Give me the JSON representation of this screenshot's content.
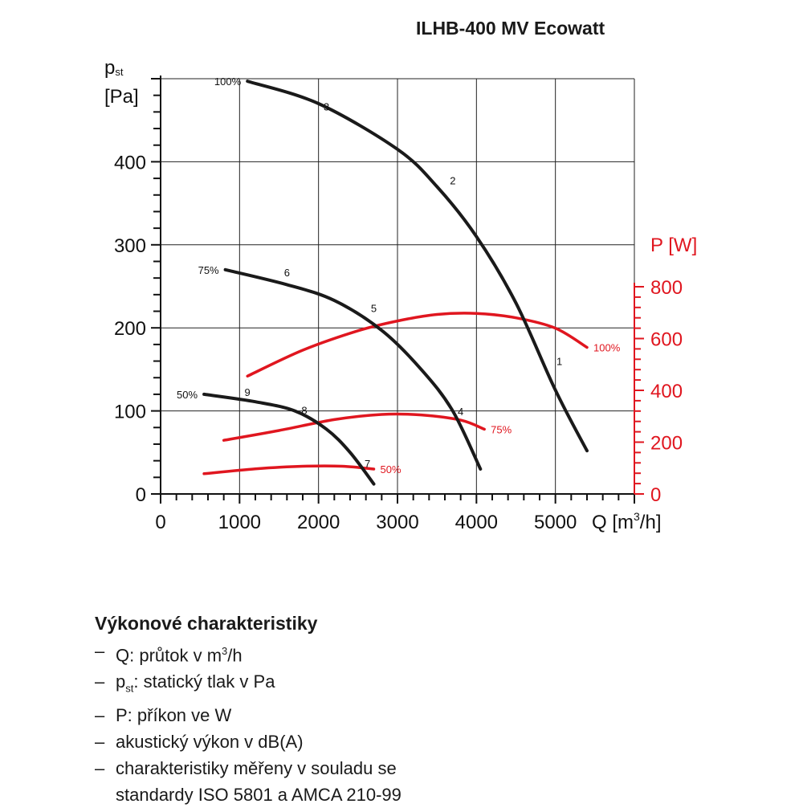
{
  "title": "ILHB-400 MV Ecowatt",
  "chart_data": {
    "type": "line",
    "left_axis": {
      "label_main": "p",
      "label_sub": "st",
      "unit": "[Pa]",
      "range": [
        0,
        500
      ],
      "ticks": [
        0,
        100,
        200,
        300,
        400
      ]
    },
    "right_axis": {
      "label": "P [W]",
      "range": [
        0,
        800
      ],
      "ticks": [
        0,
        200,
        400,
        600,
        800
      ],
      "color": "#e0161f"
    },
    "x_axis": {
      "label_prefix": "Q [m",
      "label_sup": "3",
      "label_suffix": "/h]",
      "range": [
        0,
        6000
      ],
      "ticks": [
        0,
        1000,
        2000,
        3000,
        4000,
        5000
      ]
    },
    "grid": true,
    "pressure_series": [
      {
        "name": "100%",
        "color": "#1a1a1a",
        "x": [
          1100,
          2000,
          3000,
          3500,
          4000,
          4500,
          5000,
          5400
        ],
        "y": [
          497,
          470,
          415,
          370,
          310,
          230,
          125,
          52
        ]
      },
      {
        "name": "75%",
        "color": "#1a1a1a",
        "x": [
          820,
          1600,
          2200,
          2800,
          3300,
          3700,
          4050
        ],
        "y": [
          270,
          252,
          233,
          197,
          150,
          100,
          30
        ]
      },
      {
        "name": "50%",
        "color": "#1a1a1a",
        "x": [
          550,
          1200,
          1700,
          2100,
          2400,
          2700
        ],
        "y": [
          120,
          111,
          100,
          78,
          50,
          12
        ]
      }
    ],
    "power_series": [
      {
        "name": "100%",
        "color": "#e0161f",
        "x": [
          1100,
          1800,
          2500,
          3000,
          3500,
          4000,
          4500,
          5000,
          5400
        ],
        "y": [
          455,
          555,
          630,
          668,
          693,
          697,
          680,
          640,
          566
        ]
      },
      {
        "name": "75%",
        "color": "#e0161f",
        "x": [
          800,
          1500,
          2200,
          2800,
          3300,
          3800,
          4100
        ],
        "y": [
          207,
          245,
          287,
          307,
          305,
          285,
          250
        ]
      },
      {
        "name": "50%",
        "color": "#e0161f",
        "x": [
          550,
          1200,
          1800,
          2300,
          2700
        ],
        "y": [
          78,
          97,
          107,
          107,
          96
        ]
      }
    ],
    "point_markers": [
      {
        "label": "1",
        "x": 5050,
        "y": 155
      },
      {
        "label": "2",
        "x": 3700,
        "y": 373
      },
      {
        "label": "3",
        "x": 2100,
        "y": 462
      },
      {
        "label": "4",
        "x": 3800,
        "y": 95
      },
      {
        "label": "5",
        "x": 2700,
        "y": 219
      },
      {
        "label": "6",
        "x": 1600,
        "y": 262
      },
      {
        "label": "7",
        "x": 2620,
        "y": 32
      },
      {
        "label": "8",
        "x": 1820,
        "y": 96
      },
      {
        "label": "9",
        "x": 1100,
        "y": 118
      }
    ]
  },
  "description": {
    "heading": "Výkonové charakteristiky",
    "items": [
      {
        "dash": "–",
        "parts": [
          {
            "t": "Q: průtok v m"
          },
          {
            "sup": "3"
          },
          {
            "t": "/h"
          }
        ]
      },
      {
        "dash": "–",
        "parts": [
          {
            "t": "p"
          },
          {
            "sub": "st"
          },
          {
            "t": ": statický tlak v Pa"
          }
        ]
      },
      {
        "dash": "–",
        "parts": [
          {
            "t": "P: příkon ve W"
          }
        ]
      },
      {
        "dash": "–",
        "parts": [
          {
            "t": "akustický výkon v dB(A)"
          }
        ]
      },
      {
        "dash": "–",
        "parts": [
          {
            "t": "charakteristiky měřeny v souladu se"
          }
        ]
      },
      {
        "dash": "",
        "parts": [
          {
            "t": "standardy ISO 5801 a AMCA 210-99"
          }
        ]
      }
    ]
  }
}
